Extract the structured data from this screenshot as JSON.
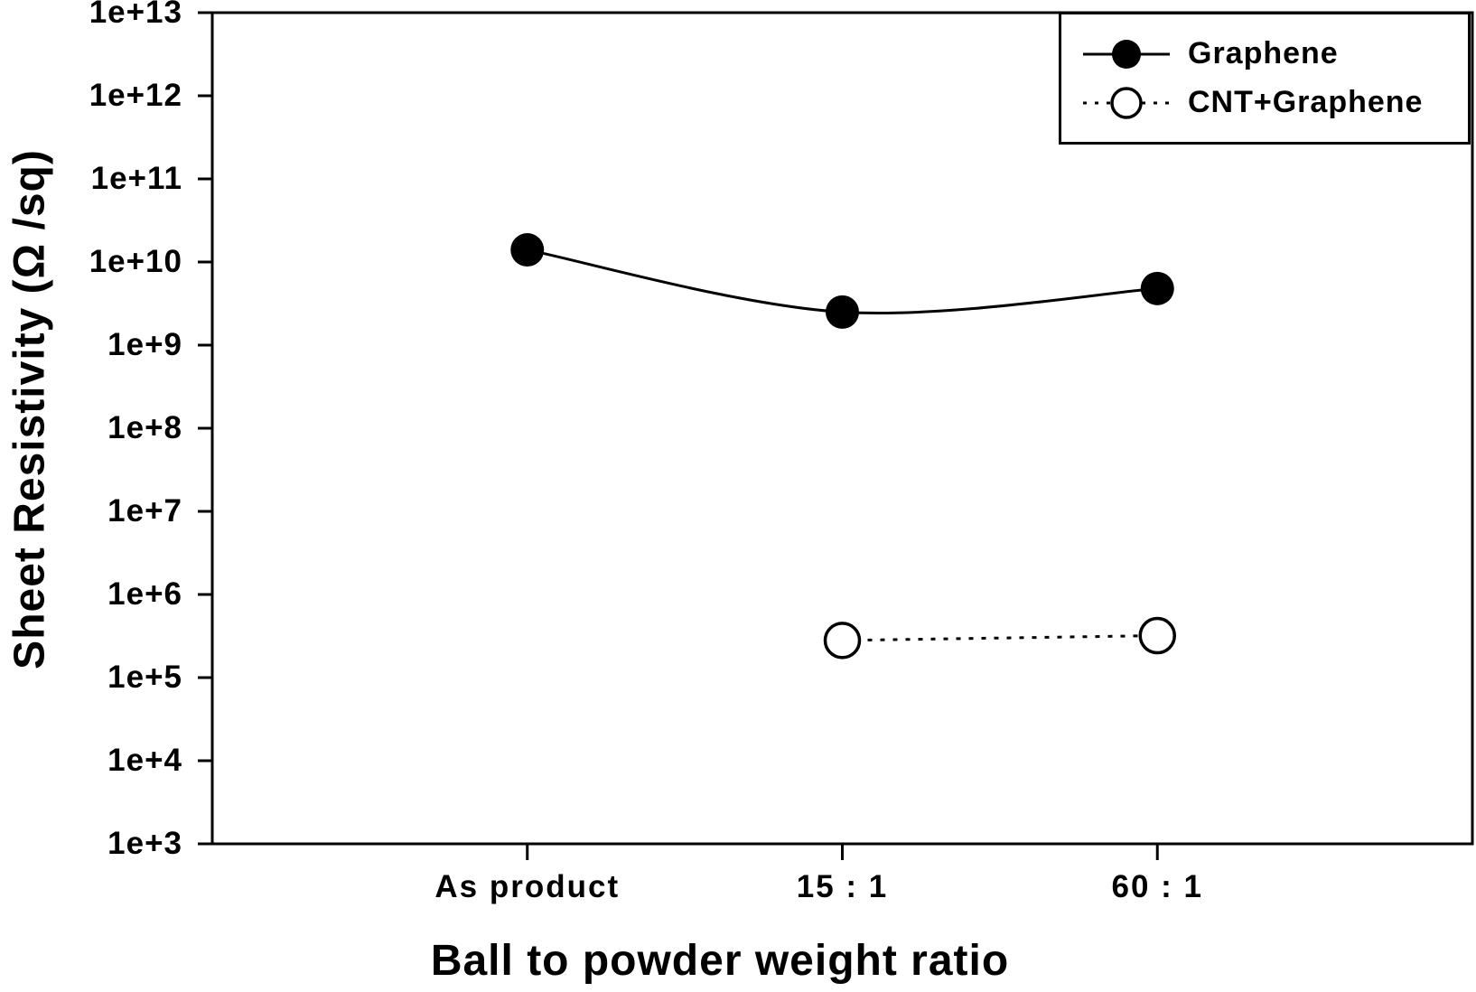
{
  "chart_data": {
    "type": "line",
    "title": "",
    "xlabel": "Ball to powder weight ratio",
    "ylabel": "Sheet Resistivity (Ω /sq)",
    "categories": [
      "As product",
      "15 : 1",
      "60 : 1"
    ],
    "y_scale": "log",
    "ylim": [
      1000,
      10000000000000
    ],
    "y_ticks": [
      "1e+3",
      "1e+4",
      "1e+5",
      "1e+6",
      "1e+7",
      "1e+8",
      "1e+9",
      "1e+10",
      "1e+11",
      "1e+12",
      "1e+13"
    ],
    "grid": "off",
    "legend_position": "top-right",
    "series": [
      {
        "name": "Graphene",
        "marker": "filled-circle",
        "line": "solid",
        "points": [
          {
            "category": "As product",
            "value": 14000000000.0
          },
          {
            "category": "15 : 1",
            "value": 2500000000.0
          },
          {
            "category": "60 : 1",
            "value": 4800000000.0
          }
        ]
      },
      {
        "name": "CNT+Graphene",
        "marker": "open-circle",
        "line": "dotted",
        "points": [
          {
            "category": "15 : 1",
            "value": 280000.0
          },
          {
            "category": "60 : 1",
            "value": 320000.0
          }
        ]
      }
    ],
    "colors": {
      "ink": "#000000",
      "background": "#ffffff"
    }
  }
}
